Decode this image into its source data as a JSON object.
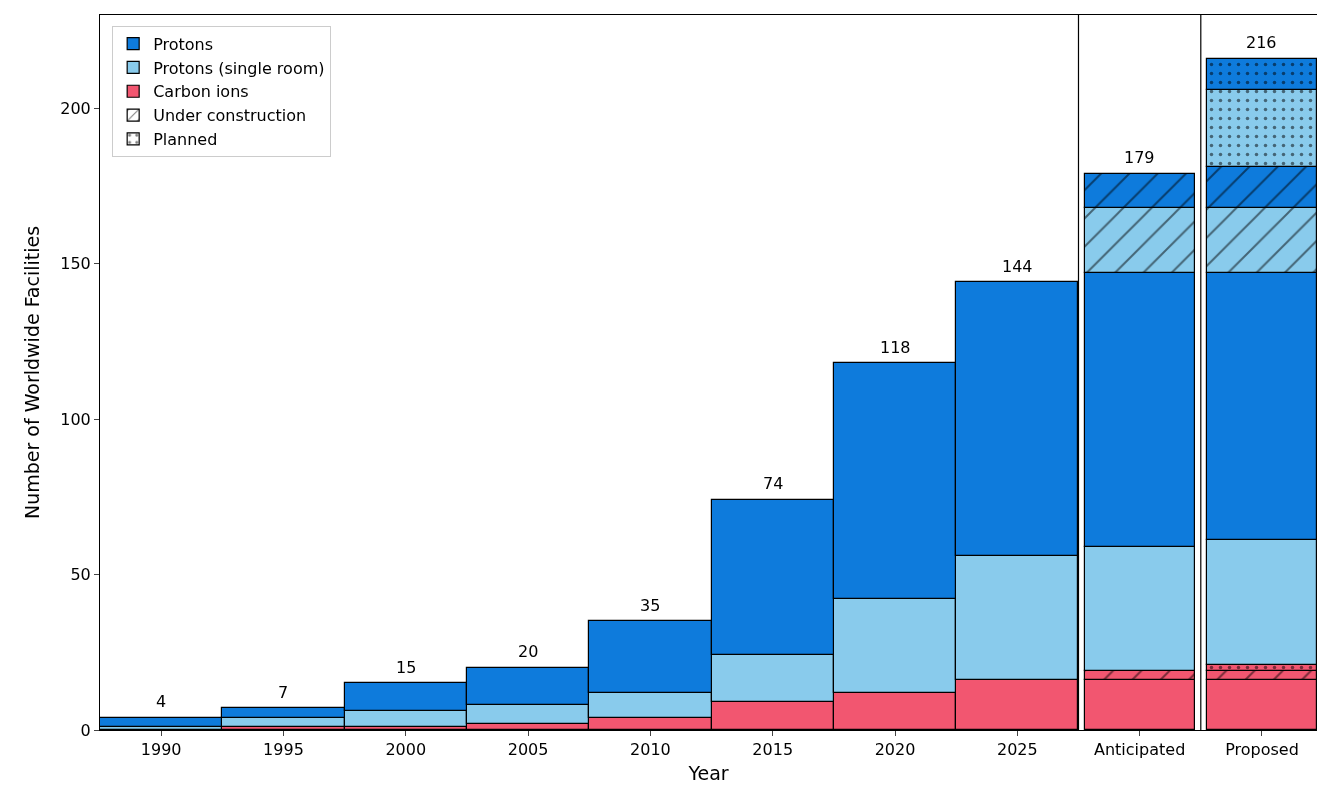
{
  "chart_data": {
    "type": "bar",
    "stacked": true,
    "xlabel": "Year",
    "ylabel": "Number of Worldwide Facilities",
    "categories": [
      "1990",
      "1995",
      "2000",
      "2005",
      "2010",
      "2015",
      "2020",
      "2025",
      "Anticipated",
      "Proposed"
    ],
    "series": [
      {
        "name": "Carbon ions",
        "color": "#f25670",
        "values": [
          null,
          1,
          1,
          2,
          4,
          9,
          12,
          16,
          16,
          16
        ]
      },
      {
        "color": "#f25670",
        "values": [
          null,
          null,
          null,
          null,
          null,
          null,
          null,
          null,
          3,
          3
        ]
      },
      {
        "color": "#f25670",
        "values": [
          null,
          null,
          null,
          null,
          null,
          null,
          null,
          null,
          null,
          2
        ]
      },
      {
        "name": "Protons (single room)",
        "color": "#89cbec",
        "values": [
          1,
          3,
          5,
          6,
          8,
          15,
          30,
          40,
          40,
          40
        ]
      },
      {
        "name": "Protons",
        "color": "#0e7bdc",
        "values": [
          3,
          3,
          9,
          12,
          23,
          50,
          76,
          88,
          88,
          86
        ]
      },
      {
        "color": "#89cbec",
        "values": [
          null,
          null,
          null,
          null,
          null,
          null,
          null,
          null,
          21,
          21
        ]
      },
      {
        "color": "#0e7bdc",
        "values": [
          null,
          null,
          null,
          null,
          null,
          null,
          null,
          null,
          11,
          13
        ]
      },
      {
        "color": "#89cbec",
        "values": [
          null,
          null,
          null,
          null,
          null,
          null,
          null,
          null,
          null,
          25
        ]
      },
      {
        "color": "#0e7bdc",
        "values": [
          null,
          null,
          null,
          null,
          null,
          null,
          null,
          null,
          null,
          10
        ]
      },
      {
        "name": "Under construction",
        "values": [
          null,
          null,
          null,
          null,
          null,
          null,
          null,
          null,
          null,
          null
        ]
      },
      {
        "name": "Planned",
        "values": [
          null,
          null,
          null,
          null,
          null,
          null,
          null,
          null,
          null,
          null
        ]
      }
    ],
    "totals": [
      "4",
      "7",
      "15",
      "20",
      "35",
      "74",
      "118",
      "144",
      "179",
      "216"
    ],
    "ylim": [
      0,
      230
    ],
    "yticks": [
      0,
      50,
      100,
      150,
      200
    ],
    "legend": "top left"
  }
}
